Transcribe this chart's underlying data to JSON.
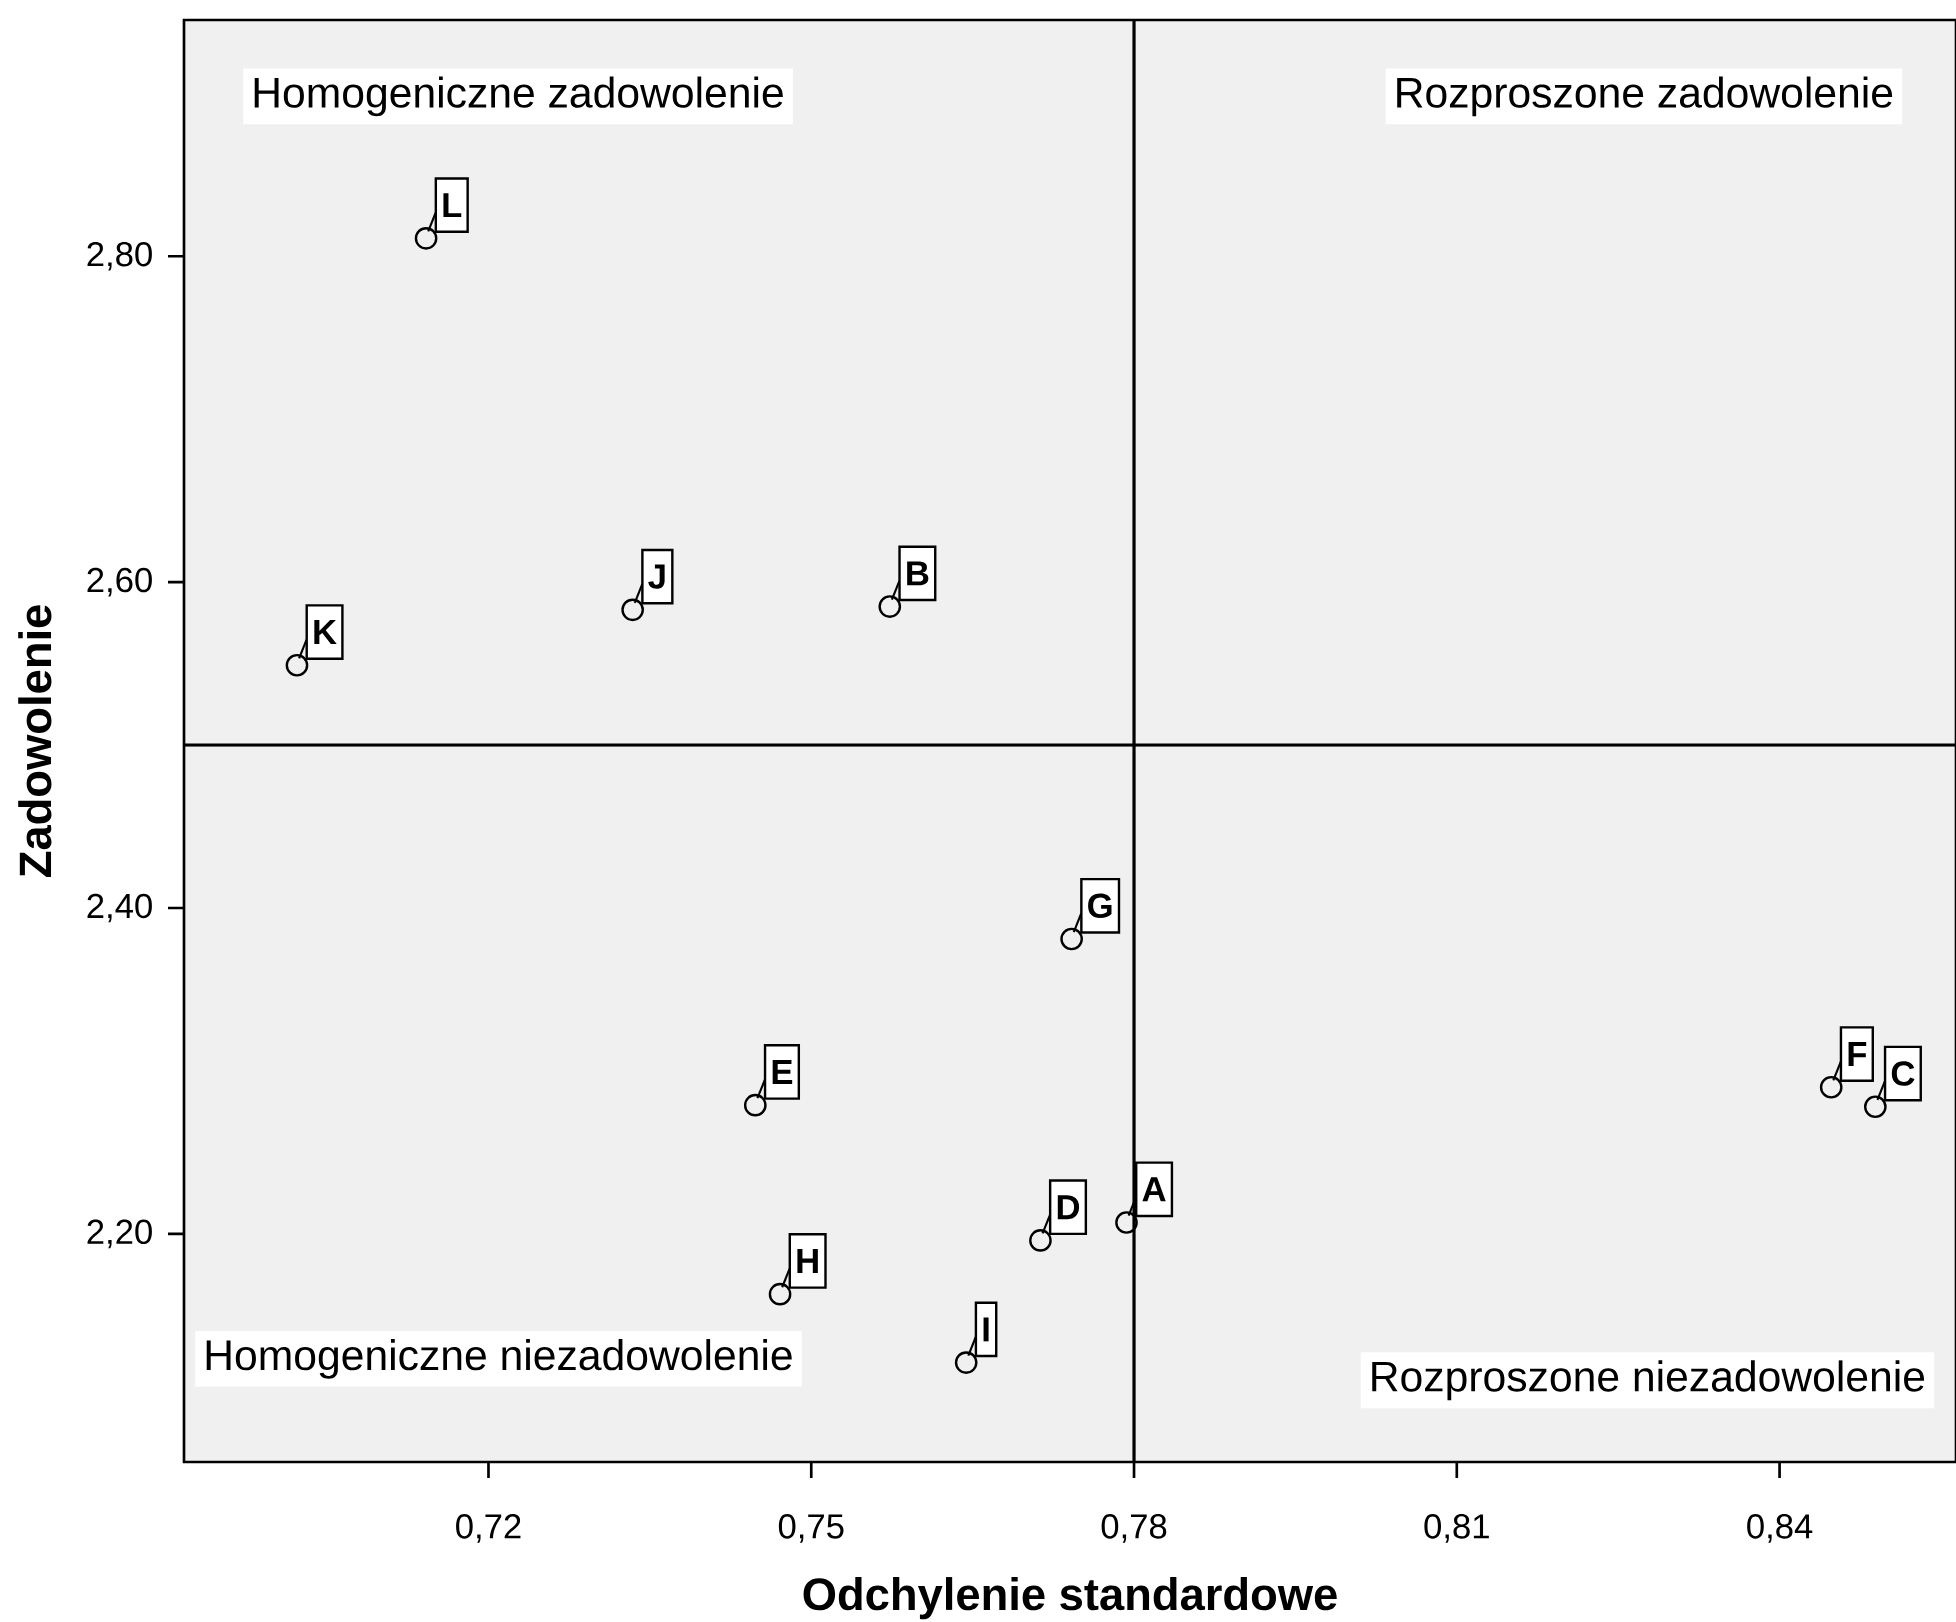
{
  "chart_data": {
    "type": "scatter",
    "xlabel": "Odchylenie standardowe",
    "ylabel": "Zadowolenie",
    "x": [
      0.7793,
      0.7573,
      0.8489,
      0.7713,
      0.7448,
      0.8448,
      0.7742,
      0.7471,
      0.7644,
      0.7334,
      0.7022,
      0.7142
    ],
    "series": [
      {
        "color": "#000000",
        "values": [
          2.207,
          2.585,
          2.278,
          2.196,
          2.279,
          2.29,
          2.381,
          2.163,
          2.121,
          2.583,
          2.549,
          2.811
        ]
      }
    ],
    "marker": "circle",
    "grid": false,
    "xlim": [
      0.6917,
      0.8564
    ],
    "ylim": [
      2.06,
      2.945
    ],
    "xticks": [
      {
        "value": 0.72,
        "label": "0,72"
      },
      {
        "value": 0.75,
        "label": "0,75"
      },
      {
        "value": 0.78,
        "label": "0,78"
      },
      {
        "value": 0.81,
        "label": "0,81"
      },
      {
        "value": 0.84,
        "label": "0,84"
      }
    ],
    "yticks": [
      {
        "value": 2.2,
        "label": "2,20"
      },
      {
        "value": 2.4,
        "label": "2,40"
      },
      {
        "value": 2.6,
        "label": "2,60"
      },
      {
        "value": 2.8,
        "label": "2,80"
      }
    ],
    "ref_lines": [
      {
        "axis": "x",
        "value": 0.78,
        "color": "#000000"
      },
      {
        "axis": "y",
        "value": 2.5,
        "color": "#000000"
      }
    ],
    "annotations": [
      {
        "text": "A",
        "x": 0.7793,
        "y": 2.207
      },
      {
        "text": "B",
        "x": 0.7573,
        "y": 2.585
      },
      {
        "text": "C",
        "x": 0.8489,
        "y": 2.278
      },
      {
        "text": "D",
        "x": 0.7713,
        "y": 2.196
      },
      {
        "text": "E",
        "x": 0.7448,
        "y": 2.279
      },
      {
        "text": "F",
        "x": 0.8448,
        "y": 2.29
      },
      {
        "text": "G",
        "x": 0.7742,
        "y": 2.381
      },
      {
        "text": "H",
        "x": 0.7471,
        "y": 2.163
      },
      {
        "text": "I",
        "x": 0.7644,
        "y": 2.121
      },
      {
        "text": "J",
        "x": 0.7334,
        "y": 2.583
      },
      {
        "text": "K",
        "x": 0.7022,
        "y": 2.549
      },
      {
        "text": "L",
        "x": 0.7142,
        "y": 2.811
      },
      "Homogeniczne zadowolenie",
      "Rozproszone zadowolenie",
      "Homogeniczne niezadowolenie",
      "Rozproszone niezadowolenie"
    ]
  }
}
